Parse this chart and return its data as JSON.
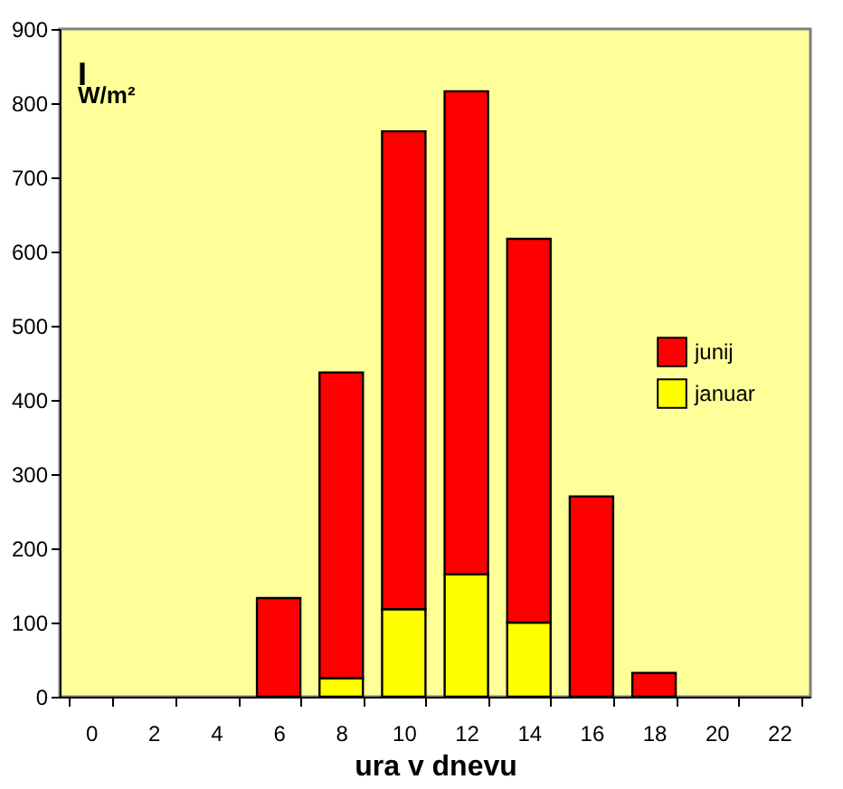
{
  "chart_data": {
    "type": "bar",
    "xlabel": "ura v dnevu",
    "annotations": [
      "I",
      "W/m²"
    ],
    "categories": [
      "0",
      "2",
      "4",
      "6",
      "8",
      "10",
      "12",
      "14",
      "16",
      "18",
      "20",
      "22"
    ],
    "stacked": true,
    "series": [
      {
        "name": "januar",
        "color": "#ffff00",
        "values": [
          null,
          null,
          null,
          null,
          25,
          118,
          165,
          100,
          null,
          null,
          null,
          null
        ]
      },
      {
        "name": "junij",
        "color": "#ff0000",
        "values": [
          null,
          null,
          null,
          133,
          412,
          644,
          651,
          517,
          270,
          32,
          null,
          null
        ]
      }
    ],
    "ylim": [
      0,
      900
    ],
    "yticks": [
      0,
      100,
      200,
      300,
      400,
      500,
      600,
      700,
      800,
      900
    ],
    "grid": false,
    "legend": "right"
  }
}
